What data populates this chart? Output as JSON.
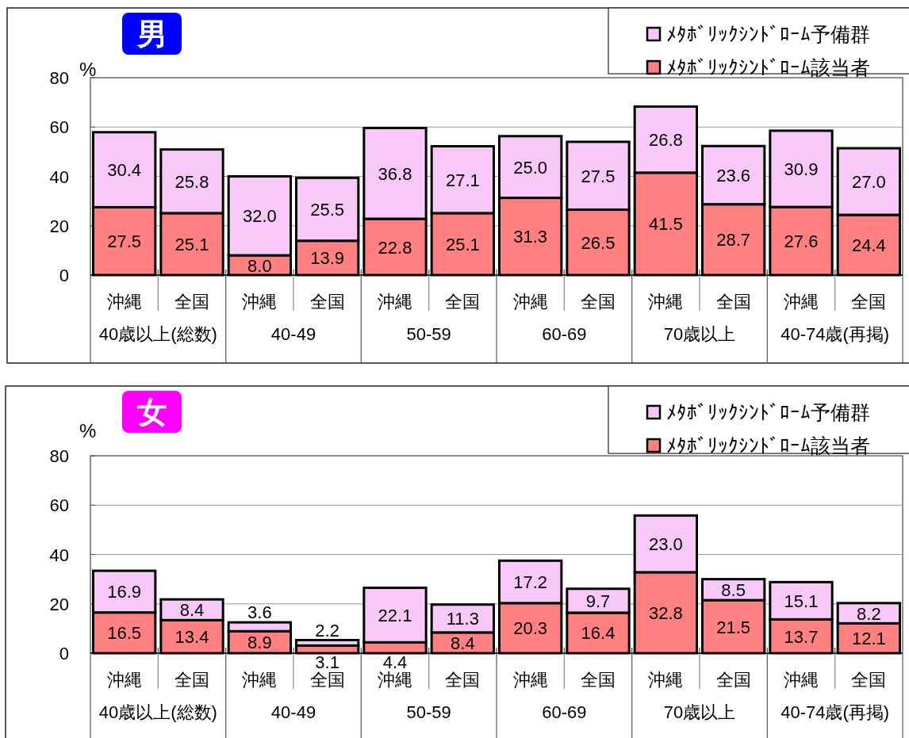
{
  "chart_data": [
    {
      "type": "bar",
      "title": "男",
      "ylabel": "%",
      "categories": [
        "沖縄",
        "全国",
        "沖縄",
        "全国",
        "沖縄",
        "全国",
        "沖縄",
        "全国",
        "沖縄",
        "全国",
        "沖縄",
        "全国"
      ],
      "annotations": [
        "40歳以上(総数)",
        "40-49",
        "50-59",
        "60-69",
        "70歳以上",
        "40-74歳(再掲)"
      ],
      "series": [
        {
          "name": "ﾒﾀﾎﾞﾘｯｸｼﾝﾄﾞﾛｰﾑ該当者",
          "color": "#ff8080",
          "values": [
            27.5,
            25.1,
            8.0,
            13.9,
            22.8,
            25.1,
            31.3,
            26.5,
            41.5,
            28.7,
            27.6,
            24.4
          ],
          "value_labels": [
            "27.5",
            "25.1",
            "8.0",
            "13.9",
            "22.8",
            "25.1",
            "31.3",
            "26.5",
            "41.5",
            "28.7",
            "27.6",
            "24.4"
          ]
        },
        {
          "name": "ﾒﾀﾎﾞﾘｯｸｼﾝﾄﾞﾛｰﾑ予備群",
          "color": "#f8c8f8",
          "values": [
            30.4,
            25.8,
            32.0,
            25.5,
            36.8,
            27.1,
            25.0,
            27.5,
            26.8,
            23.6,
            30.9,
            27.0
          ],
          "value_labels": [
            "30.4",
            "25.8",
            "32.0",
            "25.5",
            "36.8",
            "27.1",
            "25.0",
            "27.5",
            "26.8",
            "23.6",
            "30.9",
            "27.0"
          ]
        }
      ],
      "stacked": true,
      "ylim": [
        0,
        80
      ],
      "yticks": [
        0,
        20,
        40,
        60,
        80
      ],
      "grid": "y",
      "legend": "top right"
    },
    {
      "type": "bar",
      "title": "女",
      "ylabel": "%",
      "categories": [
        "沖縄",
        "全国",
        "沖縄",
        "全国",
        "沖縄",
        "全国",
        "沖縄",
        "全国",
        "沖縄",
        "全国",
        "沖縄",
        "全国"
      ],
      "annotations": [
        "40歳以上(総数)",
        "40-49",
        "50-59",
        "60-69",
        "70歳以上",
        "40-74歳(再掲)"
      ],
      "series": [
        {
          "name": "ﾒﾀﾎﾞﾘｯｸｼﾝﾄﾞﾛｰﾑ該当者",
          "color": "#ff8080",
          "values": [
            16.5,
            13.4,
            8.9,
            3.1,
            4.4,
            8.4,
            20.3,
            16.4,
            32.8,
            21.5,
            13.7,
            12.1
          ],
          "value_labels": [
            "16.5",
            "13.4",
            "8.9",
            "3.1",
            "4.4",
            "8.4",
            "20.3",
            "16.4",
            "32.8",
            "21.5",
            "13.7",
            "12.1"
          ]
        },
        {
          "name": "ﾒﾀﾎﾞﾘｯｸｼﾝﾄﾞﾛｰﾑ予備群",
          "color": "#f8c8f8",
          "values": [
            16.9,
            8.4,
            3.6,
            2.2,
            22.1,
            11.3,
            17.2,
            9.7,
            23.0,
            8.5,
            15.1,
            8.2
          ],
          "value_labels": [
            "16.9",
            "8.4",
            "3.6",
            "2.2",
            "22.1",
            "11.3",
            "17.2",
            "9.7",
            "23.0",
            "8.5",
            "15.1",
            "8.2"
          ]
        }
      ],
      "stacked": true,
      "ylim": [
        0,
        80
      ],
      "yticks": [
        0,
        20,
        40,
        60,
        80
      ],
      "grid": "y",
      "legend": "top right"
    }
  ]
}
